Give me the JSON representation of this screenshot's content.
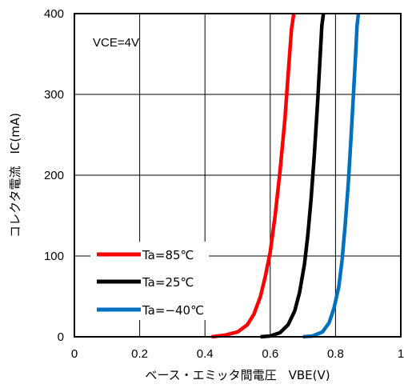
{
  "chart_data": {
    "type": "line",
    "xlabel": "ベース・エミッタ間電圧　VBE(V)",
    "ylabel": "コレクタ電流　IC(mA)",
    "annotation": "VCE=4V",
    "xlim": [
      0,
      1
    ],
    "ylim": [
      0,
      400
    ],
    "xticks": [
      "0",
      "0.2",
      "0.4",
      "0.6",
      "0.8",
      "1"
    ],
    "yticks": [
      "0",
      "100",
      "200",
      "300",
      "400"
    ],
    "grid": true,
    "legend_position": "bottom-left",
    "series": [
      {
        "name": "Ta=85℃",
        "color": "#ff0000",
        "x": [
          0.42,
          0.46,
          0.5,
          0.53,
          0.55,
          0.57,
          0.585,
          0.6,
          0.615,
          0.63,
          0.645,
          0.655,
          0.665,
          0.672
        ],
        "y": [
          0,
          2,
          6,
          15,
          28,
          50,
          75,
          105,
          150,
          205,
          270,
          325,
          380,
          400
        ]
      },
      {
        "name": "Ta=25℃",
        "color": "#000000",
        "x": [
          0.57,
          0.6,
          0.63,
          0.655,
          0.675,
          0.69,
          0.705,
          0.715,
          0.725,
          0.735,
          0.745,
          0.752,
          0.758,
          0.763
        ],
        "y": [
          0,
          1,
          5,
          15,
          32,
          55,
          90,
          125,
          170,
          225,
          290,
          340,
          385,
          400
        ]
      },
      {
        "name": "Ta=−40℃",
        "color": "#0070c0",
        "x": [
          0.7,
          0.73,
          0.76,
          0.78,
          0.795,
          0.81,
          0.82,
          0.83,
          0.84,
          0.848,
          0.855,
          0.861,
          0.866,
          0.87
        ],
        "y": [
          0,
          1,
          6,
          17,
          35,
          62,
          95,
          140,
          195,
          250,
          300,
          345,
          385,
          400
        ]
      }
    ]
  }
}
